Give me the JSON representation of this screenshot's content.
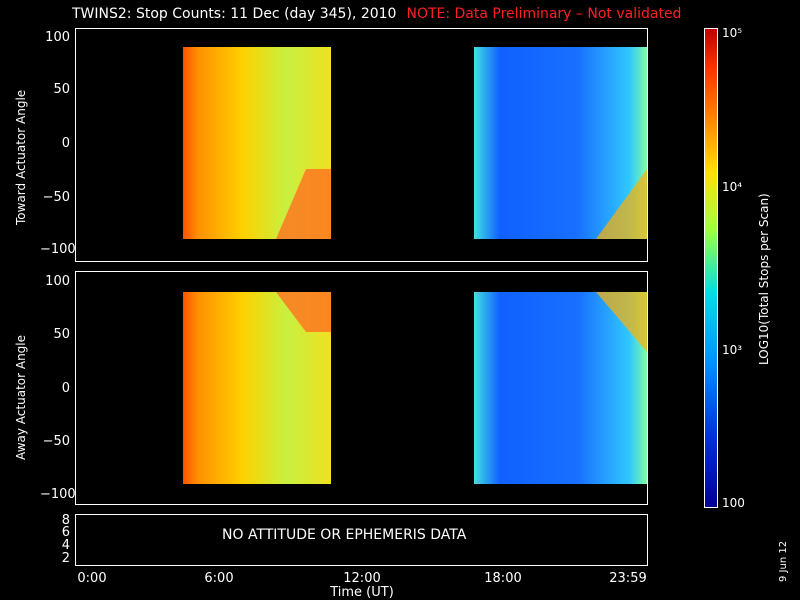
{
  "title": "TWINS2: Stop Counts: 11 Dec (day 345), 2010",
  "note": "NOTE: Data Preliminary – Not validated",
  "panels": {
    "top_ylabel": "Toward Actuator Angle",
    "bottom_ylabel": "Away Actuator Angle",
    "yticks": [
      "100",
      "50",
      "0",
      "−50",
      "−100"
    ],
    "alt_yticks": [
      "8",
      "6",
      "4",
      "2"
    ],
    "nodata_text": "NO ATTITUDE OR EPHEMERIS DATA"
  },
  "xaxis": {
    "label": "Time (UT)",
    "ticks": [
      "0:00",
      "6:00",
      "12:00",
      "18:00",
      "23:59"
    ]
  },
  "colorbar": {
    "label": "LOG10(Total Stops per Scan)",
    "tick_top": "10⁵",
    "tick_mid1": "10⁴",
    "tick_mid2": "10³",
    "tick_bottom": "100"
  },
  "date_stamp": "9 Jun 12",
  "chart_data": {
    "type": "heatmap",
    "title": "TWINS2: Stop Counts: 11 Dec (day 345), 2010",
    "xlabel": "Time (UT)",
    "xlim": [
      "0:00",
      "23:59"
    ],
    "panels": [
      {
        "ylabel": "Toward Actuator Angle",
        "ylim": [
          -110,
          110
        ],
        "data_intervals": [
          [
            "4:30",
            "10:40"
          ],
          [
            "16:40",
            "23:59"
          ]
        ],
        "angle_range": [
          -88,
          90
        ]
      },
      {
        "ylabel": "Away Actuator Angle",
        "ylim": [
          -110,
          110
        ],
        "data_intervals": [
          [
            "4:30",
            "10:40"
          ],
          [
            "16:40",
            "23:59"
          ]
        ],
        "angle_range": [
          -88,
          90
        ]
      }
    ],
    "colorbar_range": [
      100,
      100000
    ],
    "colorscale": "log"
  }
}
